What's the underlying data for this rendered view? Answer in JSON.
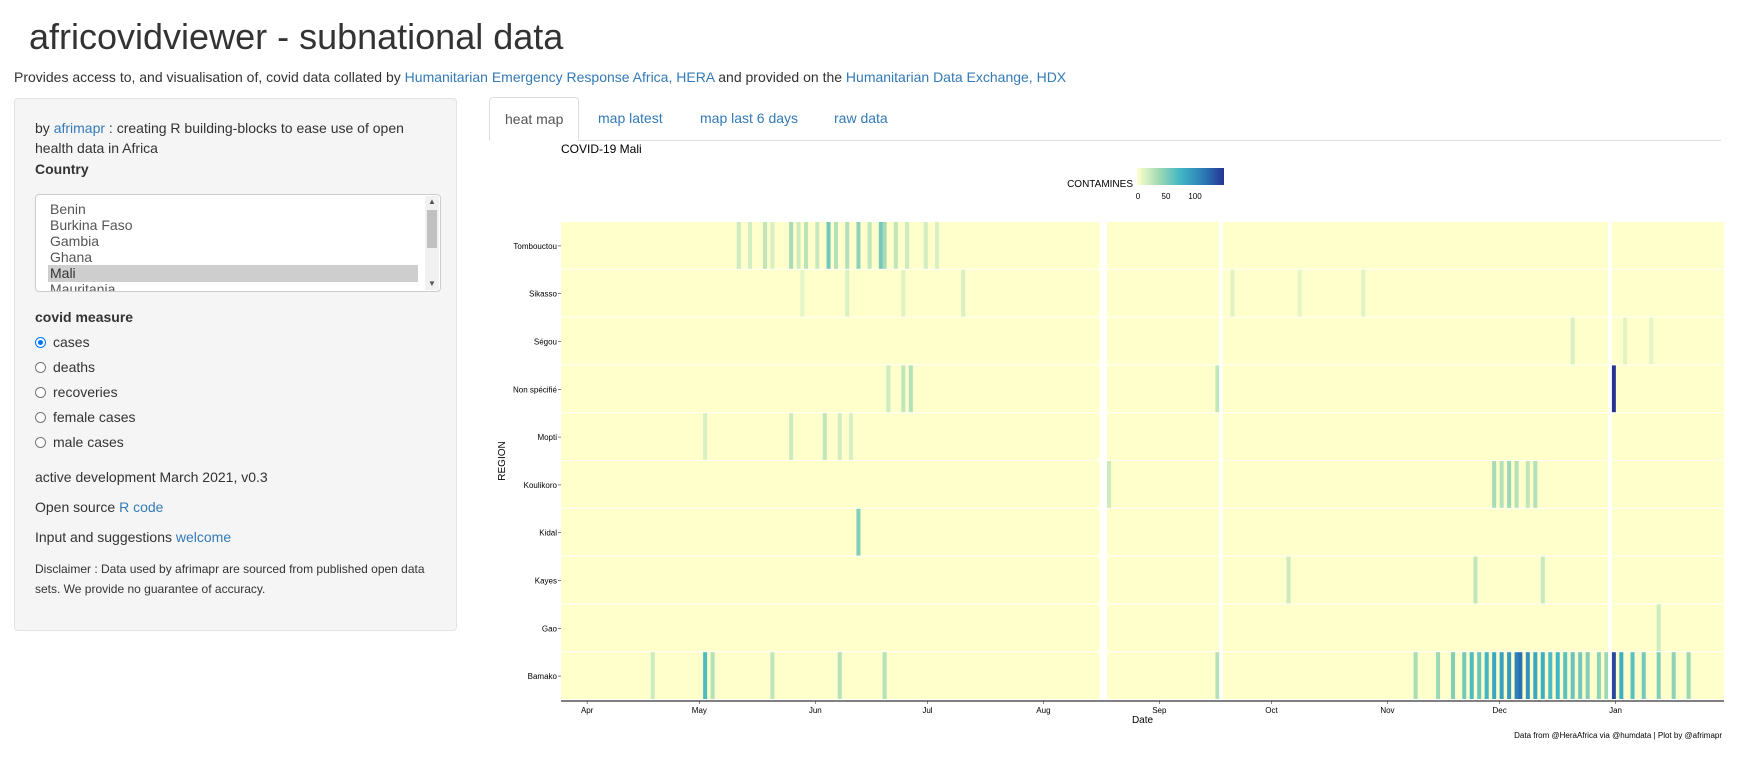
{
  "app": {
    "title": "africovidviewer - subnational data",
    "subtitle": {
      "prefix": "Provides access to, and visualisation of, covid data collated by ",
      "link1": "Humanitarian Emergency Response Africa, HERA",
      "middle": " and provided on the ",
      "link2": "Humanitarian Data Exchange, HDX"
    }
  },
  "sidebar": {
    "by_prefix": "by ",
    "by_link": "afrimapr",
    "by_suffix": " : creating R building-blocks to ease use of open health data in Africa",
    "country_label": "Country",
    "countries": [
      "Benin",
      "Burkina Faso",
      "Gambia",
      "Ghana",
      "Mali",
      "Mauritania"
    ],
    "selected_country": "Mali",
    "measure_label": "covid measure",
    "measures": [
      "cases",
      "deaths",
      "recoveries",
      "female cases",
      "male cases"
    ],
    "selected_measure": "cases",
    "dev_note": "active development March 2021, v0.3",
    "open_source_prefix": "Open source ",
    "open_source_link": "R code",
    "input_prefix": "Input and suggestions ",
    "input_link": "welcome",
    "disclaimer": "Disclaimer : Data used by afrimapr are sourced from published open data sets. We provide no guarantee of accuracy."
  },
  "tabs": [
    {
      "label": "heat map",
      "active": true
    },
    {
      "label": "map latest",
      "active": false
    },
    {
      "label": "map last 6 days",
      "active": false
    },
    {
      "label": "raw data",
      "active": false
    }
  ],
  "chart_data": {
    "type": "heatmap",
    "title": "COVID-19  Mali",
    "xlabel": "Date",
    "ylabel": "REGION",
    "legend_title": "CONTAMINES",
    "legend_ticks": [
      "0",
      "50",
      "100"
    ],
    "legend_range": [
      0,
      150
    ],
    "color_scale": [
      "#ffffcc",
      "#a1dab4",
      "#41b6c4",
      "#2c7fb8",
      "#253494"
    ],
    "caption": "Data from @HeraAfrica via @humdata | Plot by @afrimapr",
    "x_ticks": [
      "Apr",
      "May",
      "Jun",
      "Jul",
      "Aug",
      "Sep",
      "Oct",
      "Nov",
      "Dec",
      "Jan"
    ],
    "x_range": [
      "2020-03-25",
      "2021-01-29"
    ],
    "regions": [
      "Tombouctou",
      "Sikasso",
      "Ségou",
      "Non spécifié",
      "Mopti",
      "Koulikoro",
      "Kidal",
      "Kayes",
      "Gao",
      "Bamako"
    ],
    "missing_dates": [
      "2020-08-16",
      "2020-08-17",
      "2020-09-17",
      "2020-12-30"
    ],
    "series_levels": {
      "Tombouctou": {
        "2020-05-11": 20,
        "2020-05-14": 18,
        "2020-05-18": 25,
        "2020-05-20": 15,
        "2020-05-25": 35,
        "2020-05-27": 20,
        "2020-05-29": 28,
        "2020-06-01": 22,
        "2020-06-04": 55,
        "2020-06-06": 30,
        "2020-06-09": 30,
        "2020-06-12": 45,
        "2020-06-15": 25,
        "2020-06-18": 55,
        "2020-06-19": 35,
        "2020-06-22": 25,
        "2020-06-25": 20,
        "2020-06-30": 18,
        "2020-07-03": 15
      },
      "Sikasso": {
        "2020-05-28": 10,
        "2020-06-09": 15,
        "2020-06-24": 12,
        "2020-07-10": 15,
        "2020-09-20": 12,
        "2020-10-08": 10,
        "2020-10-25": 12
      },
      "Ségou": {
        "2020-12-20": 15,
        "2021-01-03": 12,
        "2021-01-10": 10
      },
      "Non spécifié": {
        "2020-06-20": 20,
        "2020-06-24": 25,
        "2020-06-26": 30,
        "2020-09-16": 25,
        "2020-12-31": 150
      },
      "Mopti": {
        "2020-05-02": 15,
        "2020-05-25": 20,
        "2020-06-03": 25,
        "2020-06-07": 18,
        "2020-06-10": 15
      },
      "Koulikoro": {
        "2020-08-18": 20,
        "2020-11-29": 35,
        "2020-12-01": 30,
        "2020-12-03": 40,
        "2020-12-05": 30,
        "2020-12-08": 25,
        "2020-12-10": 30
      },
      "Kidal": {
        "2020-06-12": 50
      },
      "Kayes": {
        "2020-10-05": 20,
        "2020-11-24": 25,
        "2020-12-12": 22
      },
      "Gao": {
        "2021-01-12": 20
      },
      "Bamako": {
        "2020-04-18": 20,
        "2020-05-02": 70,
        "2020-05-04": 30,
        "2020-05-20": 25,
        "2020-06-07": 30,
        "2020-06-19": 30,
        "2020-09-16": 30,
        "2020-11-08": 35,
        "2020-11-14": 40,
        "2020-11-18": 50,
        "2020-11-21": 55,
        "2020-11-23": 70,
        "2020-11-25": 60,
        "2020-11-27": 75,
        "2020-11-29": 85,
        "2020-12-01": 90,
        "2020-12-03": 95,
        "2020-12-05": 110,
        "2020-12-06": 120,
        "2020-12-08": 100,
        "2020-12-10": 85,
        "2020-12-12": 80,
        "2020-12-14": 70,
        "2020-12-16": 75,
        "2020-12-18": 65,
        "2020-12-20": 60,
        "2020-12-22": 55,
        "2020-12-24": 50,
        "2020-12-27": 45,
        "2020-12-29": 40,
        "2020-12-31": 140,
        "2021-01-02": 80,
        "2021-01-05": 65,
        "2021-01-08": 55,
        "2021-01-12": 50,
        "2021-01-16": 45,
        "2021-01-20": 40
      }
    }
  }
}
